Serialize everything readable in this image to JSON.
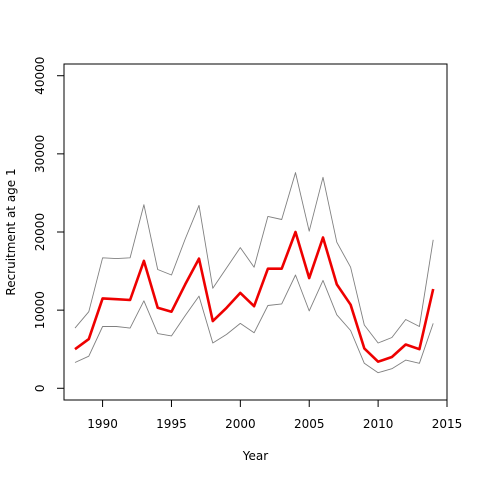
{
  "chart_data": {
    "type": "line",
    "xlabel": "Year",
    "ylabel": "Recruitment at age 1",
    "xlim": [
      1987.2,
      2015
    ],
    "ylim": [
      -1500,
      41500
    ],
    "xticks": [
      1990,
      1995,
      2000,
      2005,
      2010,
      2015
    ],
    "yticks": [
      0,
      10000,
      20000,
      30000,
      40000
    ],
    "grid": false,
    "legend": "none",
    "x": [
      1988,
      1989,
      1990,
      1991,
      1992,
      1993,
      1994,
      1995,
      1996,
      1997,
      1998,
      1999,
      2000,
      2001,
      2002,
      2003,
      2004,
      2005,
      2006,
      2007,
      2008,
      2009,
      2010,
      2011,
      2012,
      2013,
      2014
    ],
    "series": [
      {
        "role": "upper",
        "color": "#808080",
        "values": [
          7700,
          9800,
          16700,
          16600,
          16700,
          23500,
          15200,
          14500,
          19100,
          23400,
          12800,
          15400,
          18000,
          15500,
          22000,
          21600,
          27600,
          20100,
          27000,
          18700,
          15500,
          8100,
          5800,
          6500,
          8800,
          7900,
          19000
        ]
      },
      {
        "role": "estimate",
        "color": "#ee0000",
        "values": [
          5000,
          6300,
          11500,
          11400,
          11300,
          16300,
          10300,
          9800,
          13300,
          16600,
          8600,
          10300,
          12200,
          10500,
          15300,
          15300,
          20000,
          14100,
          19300,
          13300,
          10700,
          5100,
          3400,
          4000,
          5600,
          5000,
          12700
        ]
      },
      {
        "role": "lower",
        "color": "#808080",
        "values": [
          3300,
          4100,
          7900,
          7900,
          7700,
          11200,
          7000,
          6700,
          9300,
          11800,
          5800,
          6900,
          8300,
          7100,
          10600,
          10800,
          14500,
          9900,
          13800,
          9400,
          7400,
          3200,
          2000,
          2500,
          3600,
          3200,
          8300
        ]
      }
    ]
  }
}
